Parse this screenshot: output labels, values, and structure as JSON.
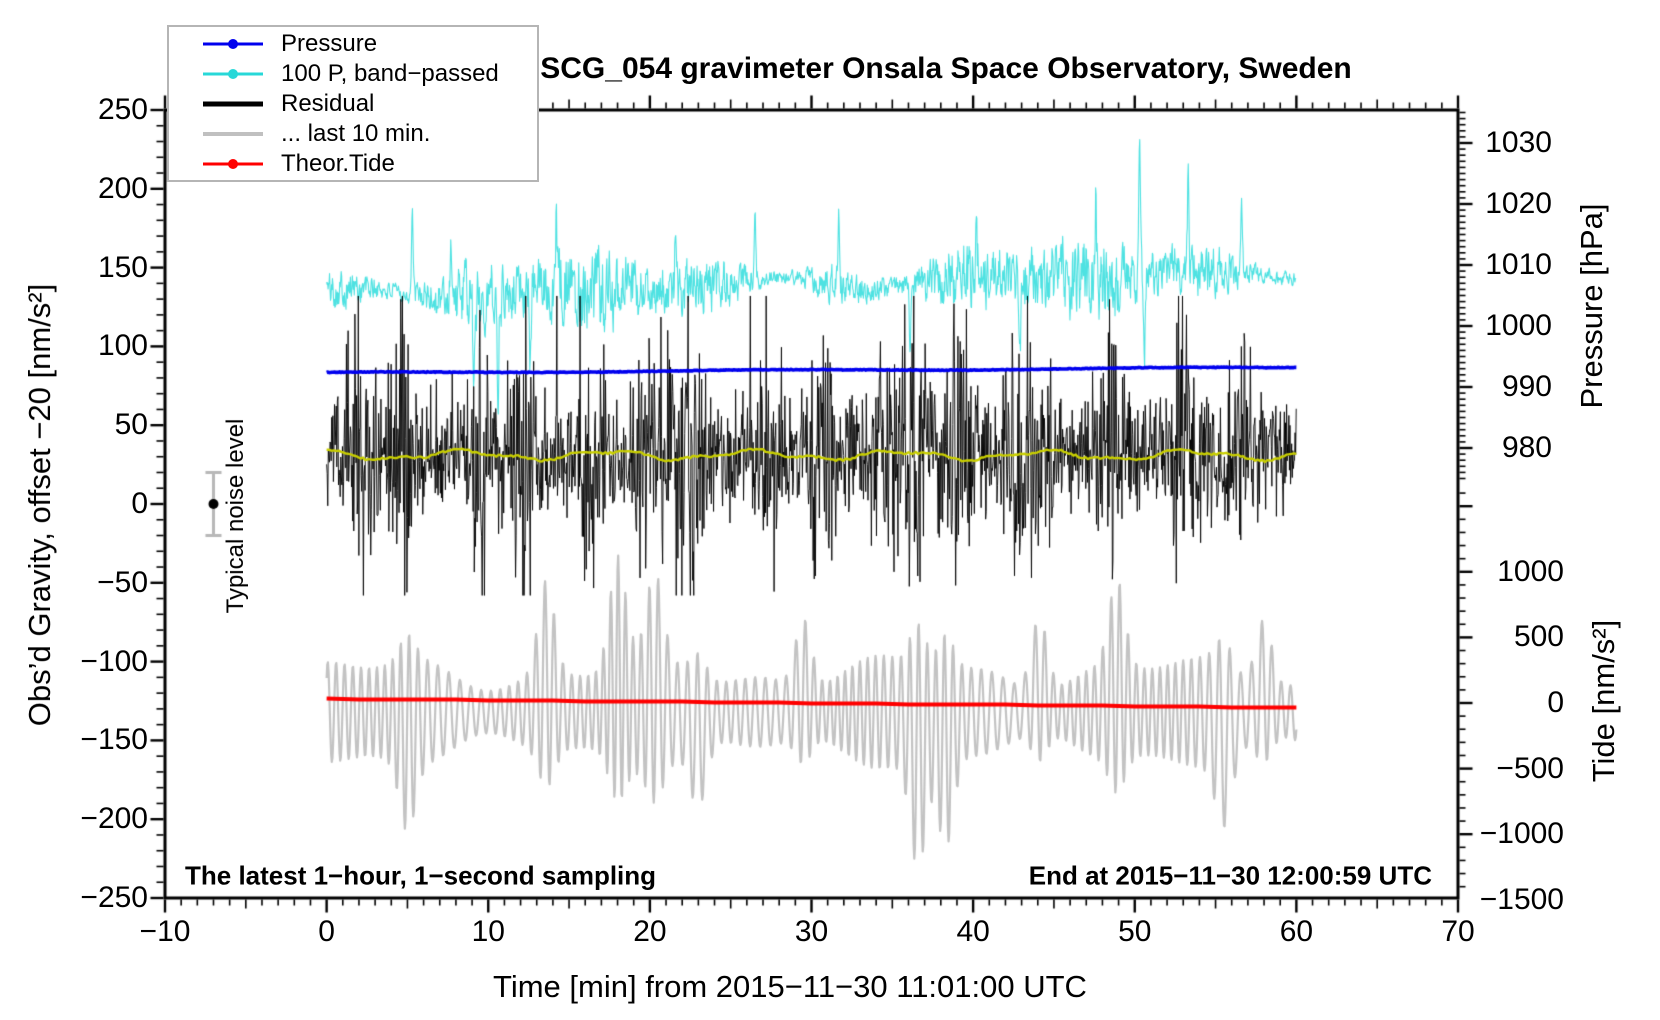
{
  "chart_data": {
    "type": "line",
    "title": "SCG_054 gravimeter Onsala Space Observatory, Sweden",
    "xlabel": "Time [min] from 2015−11−30 11:01:00 UTC",
    "ylabel_left": "Obs’d Gravity, offset −20 [nm/s²]",
    "ylabel_pressure": "Pressure [hPa]",
    "ylabel_tide": "Tide [nm/s²]",
    "annotation_sampling": "The latest 1−hour, 1−second sampling",
    "annotation_end": "End at 2015−11−30 12:00:59 UTC",
    "noise_marker": {
      "label": "Typical noise level",
      "time_min": -7,
      "value": 0,
      "error": 20
    },
    "x_axis": {
      "range": [
        -10,
        70
      ],
      "minor_step": 1,
      "medium_step": 5,
      "major_ticks": [
        -10,
        0,
        10,
        20,
        30,
        40,
        50,
        60,
        70
      ],
      "major_labels": [
        "−10",
        "0",
        "10",
        "20",
        "30",
        "40",
        "50",
        "60",
        "70"
      ]
    },
    "gravity_axis": {
      "range": [
        -250,
        250
      ],
      "minor_step": 10,
      "major_ticks": [
        250,
        200,
        150,
        100,
        50,
        0,
        -50,
        -100,
        -150,
        -200,
        -250
      ],
      "major_labels": [
        "250",
        "200",
        "150",
        "100",
        "50",
        "0",
        "−50",
        "−100",
        "−150",
        "−200",
        "−250"
      ]
    },
    "pressure_axis": {
      "range": [
        975,
        1035
      ],
      "minor_step": 1,
      "major_ticks": [
        1030,
        1020,
        1010,
        1000,
        990,
        980
      ],
      "major_labels": [
        "1030",
        "1020",
        "1010",
        "1000",
        "990",
        "980"
      ]
    },
    "tide_axis": {
      "range": [
        -1500,
        1600
      ],
      "minor_step": 100,
      "major_ticks": [
        1000,
        500,
        0,
        -500,
        -1000,
        -1500
      ],
      "major_labels": [
        "1000",
        "500",
        "0",
        "−500",
        "−1000",
        "−1500"
      ]
    },
    "legend": [
      {
        "label": "Pressure",
        "color": "#0000ee",
        "dot": true,
        "thick": 3
      },
      {
        "label": "100 P, band−passed",
        "color": "#27d8d8",
        "dot": true,
        "thick": 3
      },
      {
        "label": "Residual",
        "color": "#000000",
        "dot": false,
        "thick": 5
      },
      {
        "label": "... last 10 min.",
        "color": "#c0c0c0",
        "dot": false,
        "thick": 4
      },
      {
        "label": "Theor.Tide",
        "color": "#ff0000",
        "dot": true,
        "thick": 3
      }
    ],
    "series": [
      {
        "id": "band_passed",
        "name": "100 P, band-passed",
        "axis": "gravity",
        "color": "#4ee2e2",
        "width": 1.1,
        "seed": 101,
        "mean_start": 133,
        "mean_end": 147,
        "base_amp": 20,
        "amp_var": 0.55,
        "spikes": [
          {
            "t": 5.3,
            "a": 52
          },
          {
            "t": 7.7,
            "a": 46
          },
          {
            "t": 9.1,
            "a": -62
          },
          {
            "t": 10.6,
            "a": -68
          },
          {
            "t": 12.6,
            "a": -56
          },
          {
            "t": 14.2,
            "a": 40
          },
          {
            "t": 17.2,
            "a": -46
          },
          {
            "t": 21.6,
            "a": 44
          },
          {
            "t": 26.5,
            "a": 38
          },
          {
            "t": 31.7,
            "a": 44
          },
          {
            "t": 36.1,
            "a": -48
          },
          {
            "t": 40.2,
            "a": 40
          },
          {
            "t": 42.9,
            "a": -56
          },
          {
            "t": 47.6,
            "a": 44
          },
          {
            "t": 50.3,
            "a": 84
          },
          {
            "t": 50.6,
            "a": -52
          },
          {
            "t": 53.3,
            "a": 58
          },
          {
            "t": 56.6,
            "a": 40
          }
        ]
      },
      {
        "id": "residual",
        "name": "Residual",
        "axis": "gravity",
        "color": "#000000",
        "width": 0.9,
        "seed": 202,
        "mean": 32,
        "base_amp": 40,
        "burst_amp": 60,
        "burst_sigma": 0.55,
        "bursts": [
          2.1,
          4.6,
          9.6,
          12.3,
          16.4,
          19.7,
          21.3,
          22.7,
          27.5,
          30.6,
          34.7,
          36.3,
          39.1,
          42.7,
          44.1,
          48.6,
          53.1,
          56.6
        ],
        "spike_prob": 0.004,
        "spike_amp": 75,
        "clamp": [
          -58,
          132
        ]
      },
      {
        "id": "residual_mean",
        "name": "smoothed residual",
        "axis": "gravity",
        "color": "#c9cf00",
        "width": 2.4,
        "seed": 303,
        "mean": 31,
        "wander": 2.5
      },
      {
        "id": "pressure",
        "name": "Pressure",
        "axis": "pressure",
        "color": "#0000ee",
        "width": 3.6,
        "seed": 404,
        "start_hPa": 992.3,
        "end_hPa": 993.2,
        "jitter_hPa": 0.12
      },
      {
        "id": "last10",
        "name": "... last 10 min.",
        "axis": "gravity",
        "color": "#c3c3c3",
        "width": 2.2,
        "seed": 505,
        "mean": -132,
        "period_min": 0.55,
        "base_amp": 25,
        "amp_var": 0.5,
        "excursions": [
          {
            "t": 5.0,
            "a": -38
          },
          {
            "t": 13.6,
            "a": 52
          },
          {
            "t": 18.0,
            "a": 60
          },
          {
            "t": 20.3,
            "a": 46
          },
          {
            "t": 23.0,
            "a": -34
          },
          {
            "t": 29.5,
            "a": 38
          },
          {
            "t": 36.6,
            "a": -62
          },
          {
            "t": 38.3,
            "a": -52
          },
          {
            "t": 44.1,
            "a": 42
          },
          {
            "t": 48.9,
            "a": 48
          },
          {
            "t": 55.5,
            "a": -38
          },
          {
            "t": 58.0,
            "a": 38
          }
        ]
      },
      {
        "id": "tide",
        "name": "Theor.Tide",
        "axis": "tide",
        "color": "#ff0000",
        "width": 4,
        "seed": 606,
        "start": 36,
        "end": -33
      }
    ],
    "time_span_min": [
      0,
      60
    ]
  }
}
